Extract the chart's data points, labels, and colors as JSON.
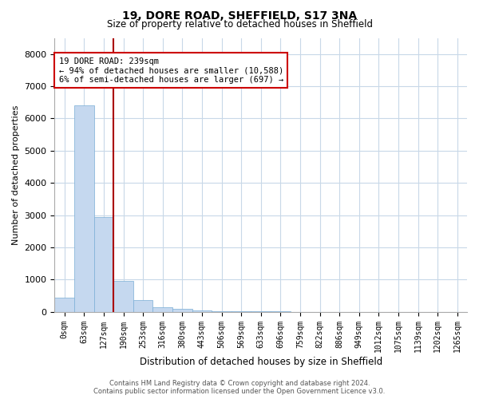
{
  "title": "19, DORE ROAD, SHEFFIELD, S17 3NA",
  "subtitle": "Size of property relative to detached houses in Sheffield",
  "xlabel": "Distribution of detached houses by size in Sheffield",
  "ylabel": "Number of detached properties",
  "categories": [
    "0sqm",
    "63sqm",
    "127sqm",
    "190sqm",
    "253sqm",
    "316sqm",
    "380sqm",
    "443sqm",
    "506sqm",
    "569sqm",
    "633sqm",
    "696sqm",
    "759sqm",
    "822sqm",
    "886sqm",
    "949sqm",
    "1012sqm",
    "1075sqm",
    "1139sqm",
    "1202sqm",
    "1265sqm"
  ],
  "values": [
    430,
    6400,
    2950,
    950,
    350,
    150,
    80,
    40,
    15,
    8,
    5,
    3,
    2,
    2,
    1,
    1,
    1,
    1,
    1,
    1,
    1
  ],
  "bar_color": "#c5d8ef",
  "bar_edge_color": "#7aaed6",
  "vline_color": "#aa0000",
  "vline_x": 2.5,
  "annotation_line1": "19 DORE ROAD: 239sqm",
  "annotation_line2": "← 94% of detached houses are smaller (10,588)",
  "annotation_line3": "6% of semi-detached houses are larger (697) →",
  "annotation_box_color": "#cc0000",
  "ylim_min": 0,
  "ylim_max": 8500,
  "yticks": [
    0,
    1000,
    2000,
    3000,
    4000,
    5000,
    6000,
    7000,
    8000
  ],
  "footer_line1": "Contains HM Land Registry data © Crown copyright and database right 2024.",
  "footer_line2": "Contains public sector information licensed under the Open Government Licence v3.0.",
  "background_color": "#ffffff",
  "grid_color": "#c8d8e8",
  "title_fontsize": 10,
  "subtitle_fontsize": 8.5,
  "ylabel_fontsize": 8,
  "xlabel_fontsize": 8.5,
  "tick_fontsize": 7,
  "annotation_fontsize": 7.5,
  "footer_fontsize": 6
}
